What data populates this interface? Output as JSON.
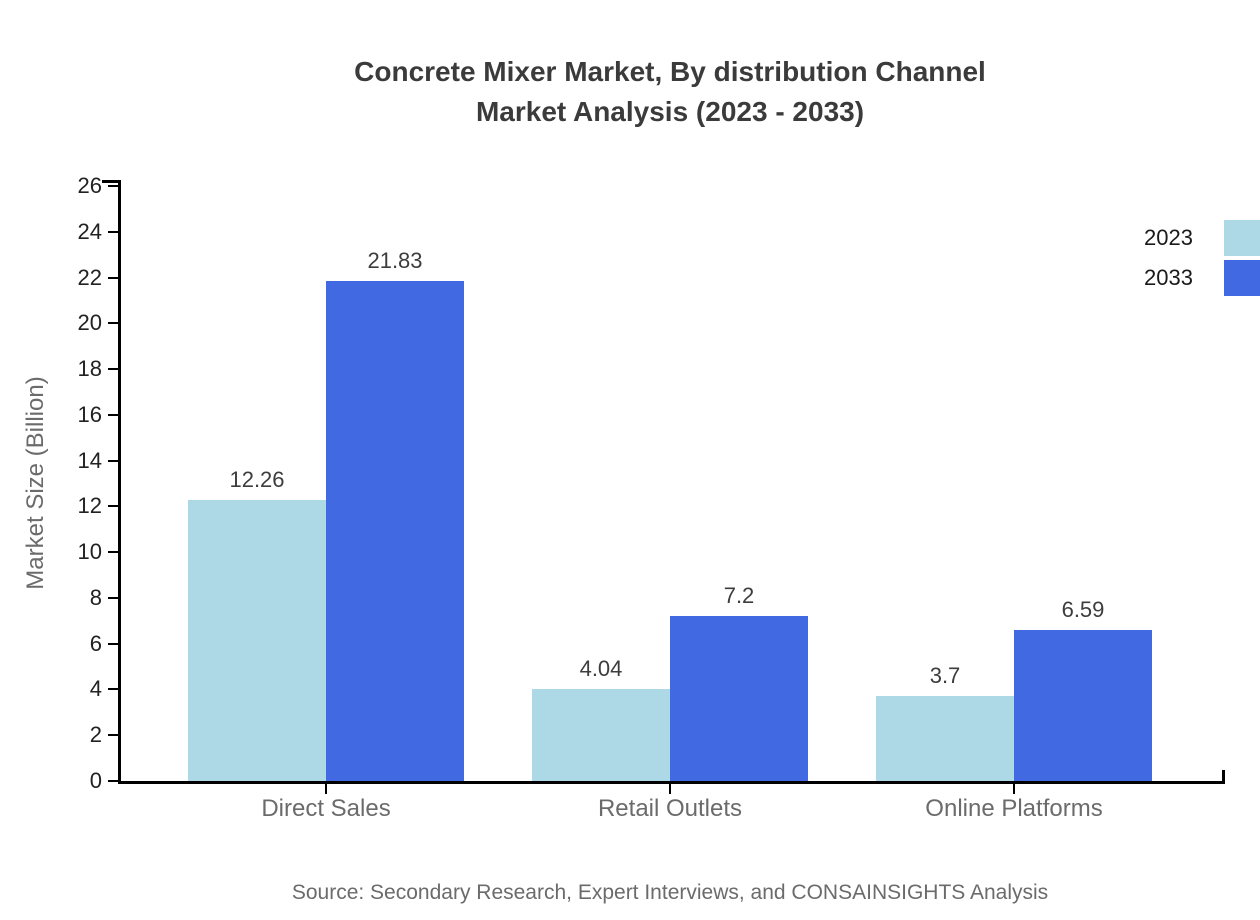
{
  "title": {
    "line1": "Concrete Mixer Market, By distribution Channel",
    "line2": "Market Analysis (2023 - 2033)"
  },
  "source": "Source: Secondary Research, Expert Interviews, and CONSAINSIGHTS Analysis",
  "colors": {
    "series_2023": "#ADD8E6",
    "series_2033": "#4169E1",
    "axis": "#000000",
    "title_text": "#3b3b3b",
    "tick_text": "#222222",
    "category_text": "#6b6b6b",
    "value_text": "#3d3d3d"
  },
  "chart_data": {
    "type": "bar",
    "title": "Concrete Mixer Market, By distribution Channel Market Analysis (2023 - 2033)",
    "categories": [
      "Direct Sales",
      "Retail Outlets",
      "Online Platforms"
    ],
    "series": [
      {
        "name": "2023",
        "color": "#ADD8E6",
        "values": [
          12.26,
          4.04,
          3.7
        ]
      },
      {
        "name": "2033",
        "color": "#4169E1",
        "values": [
          21.83,
          7.2,
          6.59
        ]
      }
    ],
    "xlabel": "",
    "ylabel": "Market Size (Billion)",
    "ylim": [
      0,
      26
    ],
    "ytick_step": 2,
    "yticks": [
      0,
      2,
      4,
      6,
      8,
      10,
      12,
      14,
      16,
      18,
      20,
      22,
      24,
      26
    ],
    "grid": false,
    "legend_position": "top-right",
    "value_labels_shown": true
  }
}
